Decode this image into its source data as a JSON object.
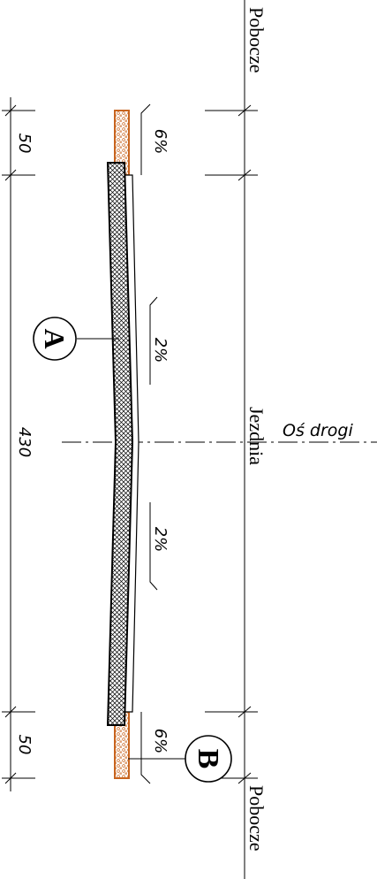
{
  "drawing": {
    "labels": {
      "shoulder_top": "Pobocze",
      "shoulder_bottom": "Pobocze",
      "carriageway": "Jezdnia",
      "road_axis": "Oś drogi"
    },
    "dimensions": {
      "top": "50",
      "middle": "430",
      "bottom": "50"
    },
    "slopes": {
      "shoulder_top": "6%",
      "lane_top": "2%",
      "lane_bottom": "2%",
      "shoulder_bottom": "6%"
    },
    "markers": {
      "a": "A",
      "b": "B"
    },
    "colors": {
      "line": "#000000",
      "shoulder_fill": "#c8641e",
      "background": "#ffffff"
    }
  }
}
